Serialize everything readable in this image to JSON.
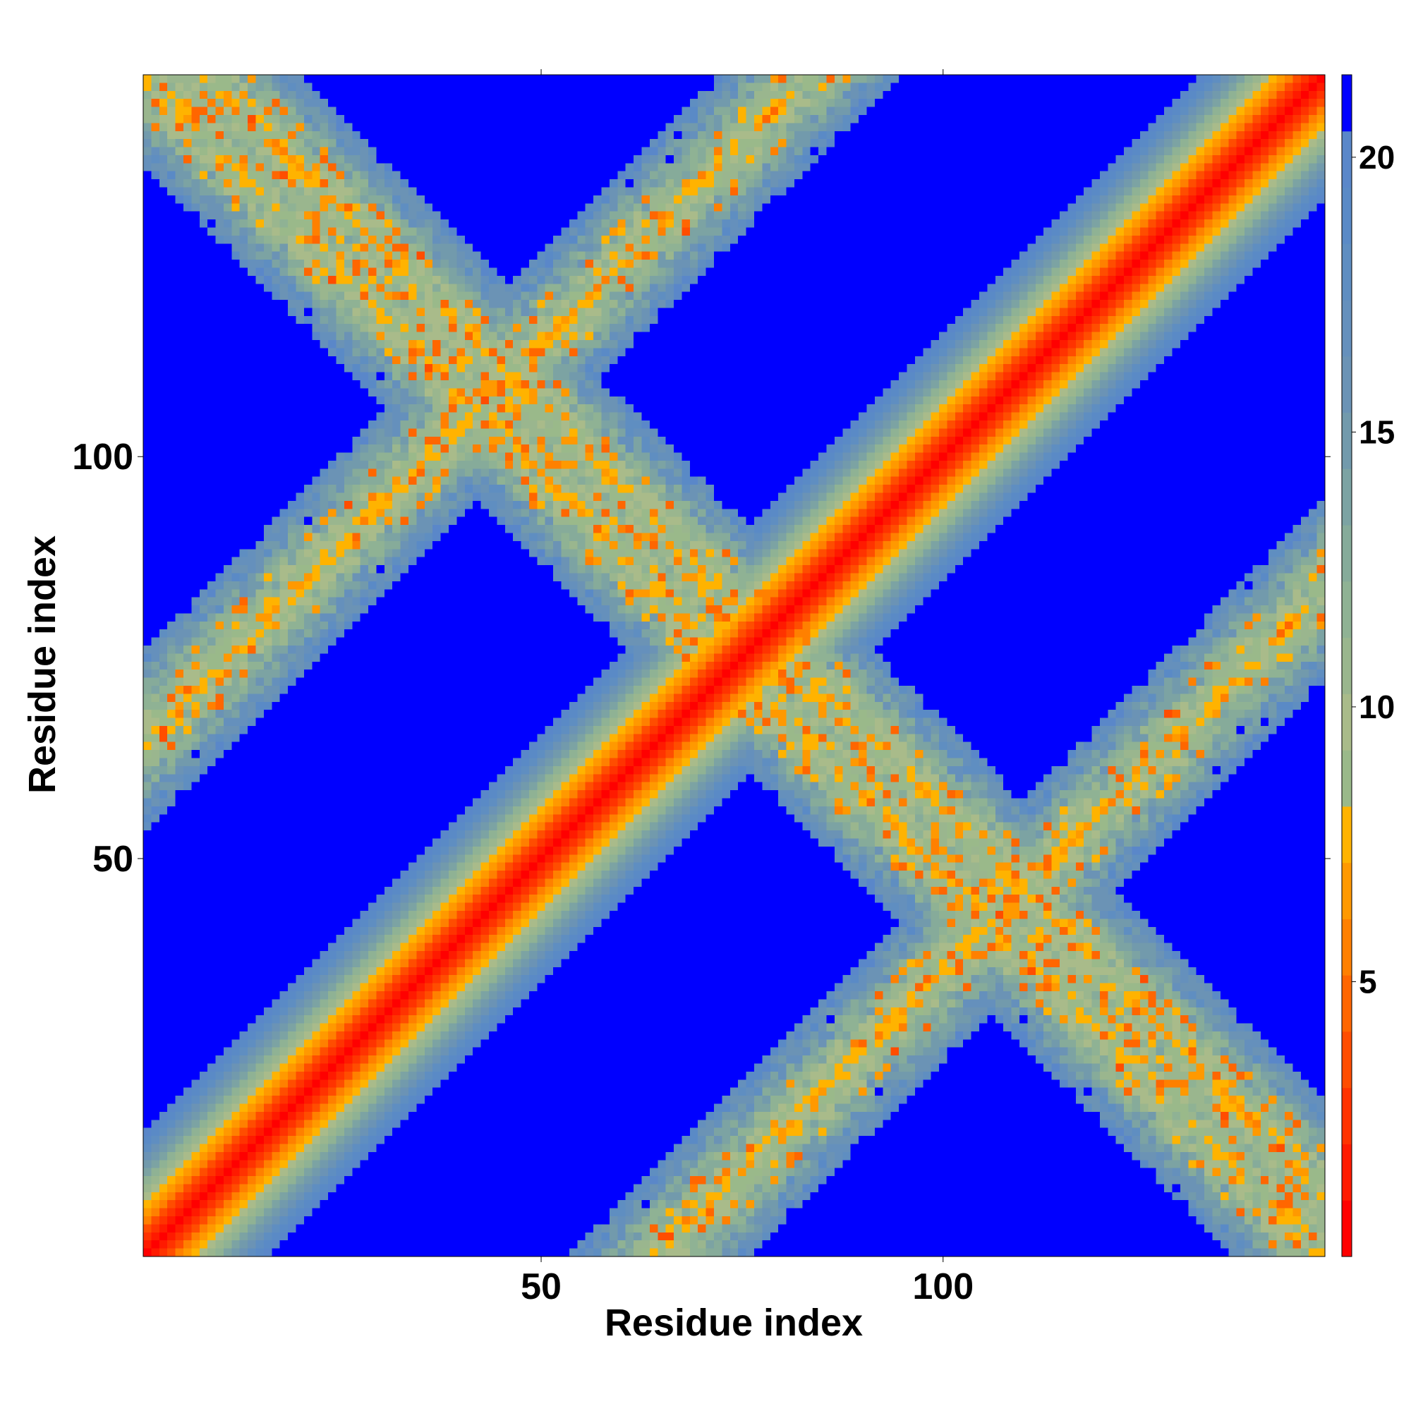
{
  "chart_data": {
    "type": "heatmap",
    "title": "",
    "xlabel": "Residue index",
    "ylabel": "Residue index",
    "n_residues": 147,
    "xlim": [
      1,
      147
    ],
    "ylim": [
      1,
      147
    ],
    "x_ticks": [
      50,
      100
    ],
    "x_tick_labels": [
      "50",
      "100"
    ],
    "y_ticks": [
      50,
      100
    ],
    "y_tick_labels": [
      "50",
      "100"
    ],
    "colorbar": {
      "range": [
        0,
        21.5
      ],
      "ticks": [
        5,
        10,
        15,
        20
      ],
      "tick_labels": [
        "5",
        "10",
        "15",
        "20"
      ],
      "over_value": 21,
      "colors": [
        "#ff0000",
        "#ff1a00",
        "#ff3300",
        "#ff4d00",
        "#ff6600",
        "#ff8000",
        "#ff9900",
        "#ffb300",
        "#9ab98a",
        "#a9bb8a",
        "#9ab68e",
        "#8fb294",
        "#86ab9a",
        "#7ca3a3",
        "#729aac",
        "#6b93b5",
        "#6590bc",
        "#5f8ec1",
        "#5a8ac6",
        "#5a87c9",
        "#0000ff"
      ]
    },
    "description_values": {
      "diagonal_value": 0,
      "background_value": 21,
      "contact_bands": [
        {
          "type": "anti-diagonal",
          "i_plus_j": 146
        },
        {
          "type": "anti-diagonal",
          "i_plus_j": 154
        },
        {
          "type": "secondary-diagonal",
          "offset": 64
        },
        {
          "type": "secondary-diagonal",
          "offset": -64
        }
      ]
    }
  }
}
